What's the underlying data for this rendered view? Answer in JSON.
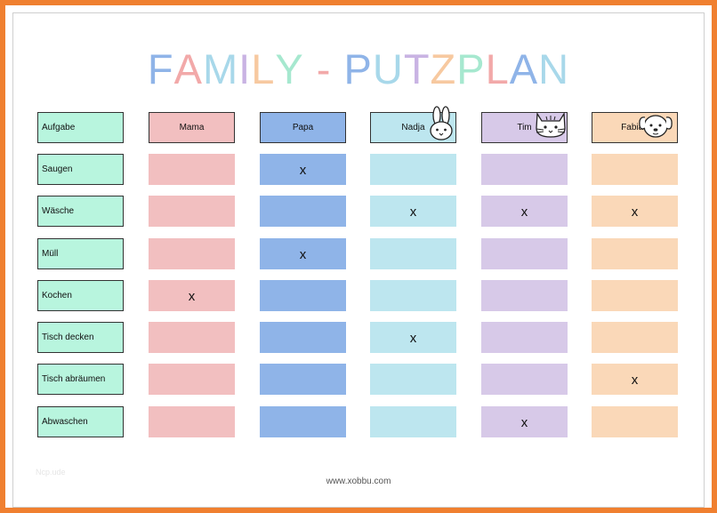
{
  "title": {
    "letters": [
      {
        "ch": "F",
        "color": "#8fb4e8"
      },
      {
        "ch": "A",
        "color": "#f2a9a9"
      },
      {
        "ch": "M",
        "color": "#a8d8ea"
      },
      {
        "ch": "I",
        "color": "#c9b3e3"
      },
      {
        "ch": "L",
        "color": "#f7c9a0"
      },
      {
        "ch": "Y",
        "color": "#a6e8cf"
      },
      {
        "ch": " ",
        "color": "#ffffff"
      },
      {
        "ch": "-",
        "color": "#f2a9a9"
      },
      {
        "ch": " ",
        "color": "#ffffff"
      },
      {
        "ch": "P",
        "color": "#8fb4e8"
      },
      {
        "ch": "U",
        "color": "#a8d8ea"
      },
      {
        "ch": "T",
        "color": "#c9b3e3"
      },
      {
        "ch": "Z",
        "color": "#f7c9a0"
      },
      {
        "ch": "P",
        "color": "#a6e8cf"
      },
      {
        "ch": "L",
        "color": "#f2a9a9"
      },
      {
        "ch": "A",
        "color": "#8fb4e8"
      },
      {
        "ch": "N",
        "color": "#a8d8ea"
      }
    ]
  },
  "header_task": "Aufgabe",
  "people": [
    {
      "name": "Mama",
      "header_color": "#f2bfc0",
      "cell_color": "#f2bfc0",
      "icon": ""
    },
    {
      "name": "Papa",
      "header_color": "#8fb4e8",
      "cell_color": "#8fb4e8",
      "icon": ""
    },
    {
      "name": "Nadja",
      "header_color": "#bde6ef",
      "cell_color": "#bde6ef",
      "icon": "bunny-icon"
    },
    {
      "name": "Tim",
      "header_color": "#d7c9e8",
      "cell_color": "#d7c9e8",
      "icon": "cat-icon"
    },
    {
      "name": "Fabian",
      "header_color": "#fad8b8",
      "cell_color": "#fad8b8",
      "icon": "dog-icon"
    }
  ],
  "tasks": [
    {
      "name": "Saugen",
      "marks": [
        "",
        "x",
        "",
        "",
        ""
      ]
    },
    {
      "name": "Wäsche",
      "marks": [
        "",
        "",
        "x",
        "x",
        "x"
      ]
    },
    {
      "name": "Müll",
      "marks": [
        "",
        "x",
        "",
        "",
        ""
      ]
    },
    {
      "name": "Kochen",
      "marks": [
        "x",
        "",
        "",
        "",
        ""
      ]
    },
    {
      "name": "Tisch decken",
      "marks": [
        "",
        "",
        "x",
        "",
        ""
      ]
    },
    {
      "name": "Tisch abräumen",
      "marks": [
        "",
        "",
        "",
        "",
        "x"
      ]
    },
    {
      "name": "Abwaschen",
      "marks": [
        "",
        "",
        "",
        "x",
        ""
      ]
    }
  ],
  "task_color": "#b8f5de",
  "footer": "www.xobbu.com",
  "watermark": "Ncp.ude",
  "frame_color": "#f08030"
}
